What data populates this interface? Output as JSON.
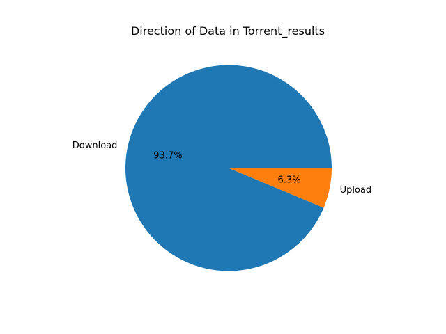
{
  "chart_data": {
    "type": "pie",
    "title": "Direction of Data in Torrent_results",
    "slices": [
      {
        "label": "Download",
        "value": 93.7,
        "pct_label": "93.7%",
        "color": "#1f77b4"
      },
      {
        "label": "Upload",
        "value": 6.3,
        "pct_label": "6.3%",
        "color": "#ff7f0e"
      }
    ],
    "start_angle_deg": 0,
    "direction": "counterclockwise"
  }
}
